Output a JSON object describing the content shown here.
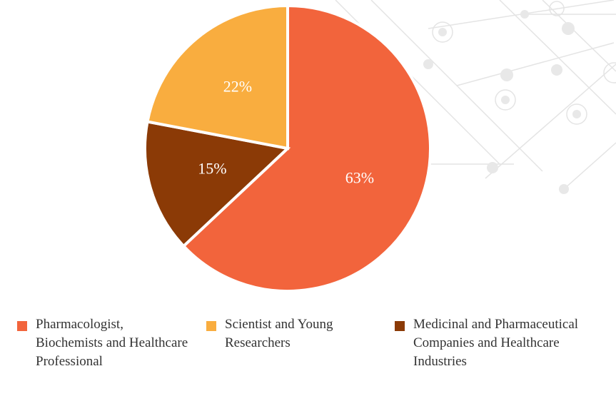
{
  "chart_data": {
    "type": "pie",
    "categories": [
      "Pharmacologist, Biochemists and Healthcare Professional",
      "Scientist and Young Researchers",
      "Medicinal and Pharmaceutical Companies and Healthcare Industries"
    ],
    "values": [
      63,
      22,
      15
    ],
    "value_labels": [
      "63%",
      "22%",
      "15%"
    ],
    "colors": [
      "#f2643c",
      "#f9ad3f",
      "#8b3a06"
    ],
    "legend": "bottom"
  }
}
